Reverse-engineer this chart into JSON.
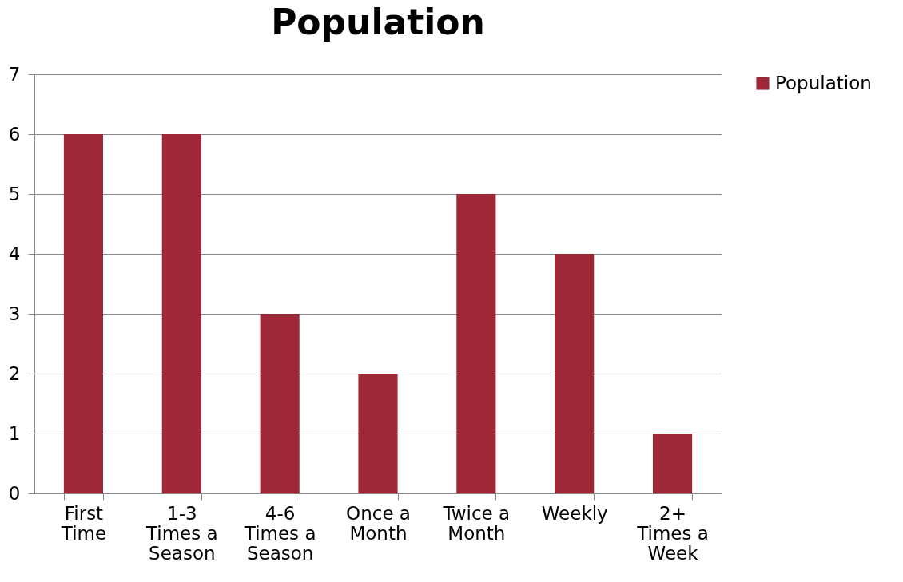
{
  "chart_data": {
    "type": "bar",
    "title": "Population",
    "categories": [
      "First Time",
      "1-3 Times a Season",
      "4-6 Times a Season",
      "Once a Month",
      "Twice a Month",
      "Weekly",
      "2+ Times a Week"
    ],
    "series": [
      {
        "name": "Population",
        "color": "#9e2837",
        "values": [
          6,
          6,
          3,
          2,
          5,
          4,
          1
        ]
      }
    ],
    "ylim": [
      0,
      7
    ],
    "yticks": [
      0,
      1,
      2,
      3,
      4,
      5,
      6,
      7
    ],
    "grid": "y",
    "legend": "right"
  }
}
